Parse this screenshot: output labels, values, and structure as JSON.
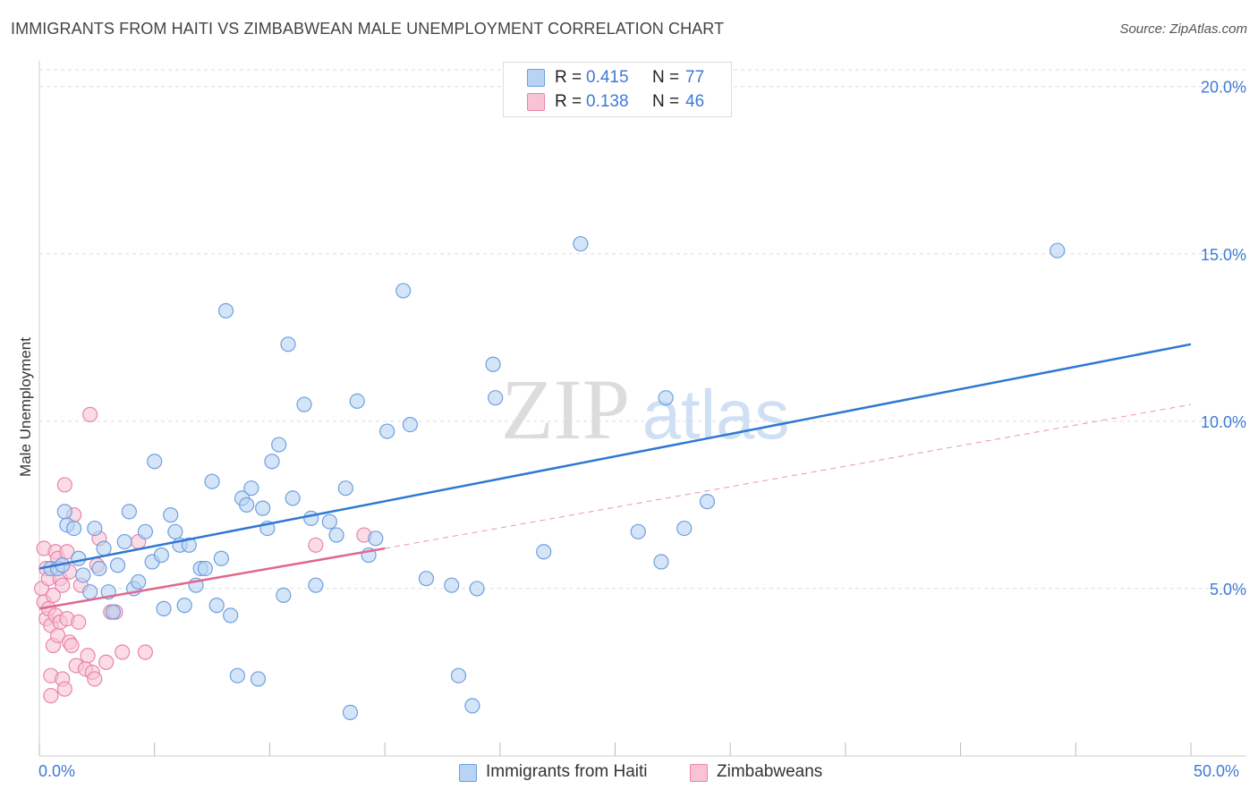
{
  "title": "IMMIGRANTS FROM HAITI VS ZIMBABWEAN MALE UNEMPLOYMENT CORRELATION CHART",
  "source": "Source: ZipAtlas.com",
  "watermark": {
    "zip": "ZIP",
    "atlas": "atlas"
  },
  "colors": {
    "blue_fill": "#b8d3f4",
    "blue_stroke": "#6f9fe0",
    "blue_line": "#2f78d2",
    "pink_fill": "#f8c3d5",
    "pink_stroke": "#e886a8",
    "pink_line": "#e0688f",
    "tick_text": "#3d7ad6",
    "grid": "#dddddd"
  },
  "legend": {
    "rows": [
      {
        "r_label": "R =",
        "r_value": "0.415",
        "n_label": "N =",
        "n_value": "77"
      },
      {
        "r_label": "R =",
        "r_value": "0.138",
        "n_label": "N =",
        "n_value": "46"
      }
    ]
  },
  "bottom_legend": [
    {
      "label": "Immigrants from Haiti"
    },
    {
      "label": "Zimbabweans"
    }
  ],
  "chart_data": {
    "type": "scatter",
    "title": "IMMIGRANTS FROM HAITI VS ZIMBABWEAN MALE UNEMPLOYMENT CORRELATION CHART",
    "xlabel": "",
    "ylabel": "Male Unemployment",
    "xlim": [
      0,
      50
    ],
    "ylim": [
      0,
      20.5
    ],
    "x_tick_labels": [
      "0.0%",
      "50.0%"
    ],
    "y_ticks": [
      5,
      10,
      15,
      20
    ],
    "y_tick_labels": [
      "5.0%",
      "10.0%",
      "15.0%",
      "20.0%"
    ],
    "x_minor_ticks": [
      0,
      5,
      10,
      15,
      20,
      25,
      30,
      35,
      40,
      45,
      50
    ],
    "grid": true,
    "legend_position": "top-center",
    "series": [
      {
        "name": "Immigrants from Haiti",
        "color": "#b8d3f4",
        "trend": {
          "x": [
            0,
            50
          ],
          "y": [
            5.6,
            12.3
          ]
        },
        "points": [
          [
            0.5,
            5.6
          ],
          [
            0.8,
            5.6
          ],
          [
            1.0,
            5.7
          ],
          [
            1.1,
            7.3
          ],
          [
            1.2,
            6.9
          ],
          [
            1.5,
            6.8
          ],
          [
            1.7,
            5.9
          ],
          [
            1.9,
            5.4
          ],
          [
            2.2,
            4.9
          ],
          [
            2.4,
            6.8
          ],
          [
            2.6,
            5.6
          ],
          [
            2.8,
            6.2
          ],
          [
            3.0,
            4.9
          ],
          [
            3.2,
            4.3
          ],
          [
            3.4,
            5.7
          ],
          [
            3.7,
            6.4
          ],
          [
            3.9,
            7.3
          ],
          [
            4.1,
            5.0
          ],
          [
            4.3,
            5.2
          ],
          [
            4.6,
            6.7
          ],
          [
            4.9,
            5.8
          ],
          [
            5.0,
            8.8
          ],
          [
            5.3,
            6.0
          ],
          [
            5.4,
            4.4
          ],
          [
            5.7,
            7.2
          ],
          [
            5.9,
            6.7
          ],
          [
            6.1,
            6.3
          ],
          [
            6.3,
            4.5
          ],
          [
            6.5,
            6.3
          ],
          [
            6.8,
            5.1
          ],
          [
            7.0,
            5.6
          ],
          [
            7.2,
            5.6
          ],
          [
            7.5,
            8.2
          ],
          [
            7.7,
            4.5
          ],
          [
            7.9,
            5.9
          ],
          [
            8.1,
            13.3
          ],
          [
            8.3,
            4.2
          ],
          [
            8.6,
            2.4
          ],
          [
            8.8,
            7.7
          ],
          [
            9.0,
            7.5
          ],
          [
            9.2,
            8.0
          ],
          [
            9.5,
            2.3
          ],
          [
            9.7,
            7.4
          ],
          [
            9.9,
            6.8
          ],
          [
            10.1,
            8.8
          ],
          [
            10.4,
            9.3
          ],
          [
            10.6,
            4.8
          ],
          [
            10.8,
            12.3
          ],
          [
            11.0,
            7.7
          ],
          [
            11.5,
            10.5
          ],
          [
            11.8,
            7.1
          ],
          [
            12.0,
            5.1
          ],
          [
            12.6,
            7.0
          ],
          [
            12.9,
            6.6
          ],
          [
            13.3,
            8.0
          ],
          [
            13.5,
            1.3
          ],
          [
            13.8,
            10.6
          ],
          [
            14.3,
            6.0
          ],
          [
            14.6,
            6.5
          ],
          [
            15.1,
            9.7
          ],
          [
            15.8,
            13.9
          ],
          [
            16.1,
            9.9
          ],
          [
            16.8,
            5.3
          ],
          [
            17.9,
            5.1
          ],
          [
            18.2,
            2.4
          ],
          [
            18.8,
            1.5
          ],
          [
            19.0,
            5.0
          ],
          [
            19.7,
            11.7
          ],
          [
            19.8,
            10.7
          ],
          [
            21.9,
            6.1
          ],
          [
            23.5,
            15.3
          ],
          [
            26.0,
            6.7
          ],
          [
            27.0,
            5.8
          ],
          [
            27.2,
            10.7
          ],
          [
            28.0,
            6.8
          ],
          [
            29.0,
            7.6
          ],
          [
            44.2,
            15.1
          ]
        ]
      },
      {
        "name": "Zimbabweans",
        "color": "#f8c3d5",
        "trend": {
          "x": [
            0,
            15
          ],
          "y": [
            4.4,
            6.2
          ]
        },
        "trend_extension": {
          "x": [
            15,
            50
          ],
          "y": [
            6.2,
            10.5
          ]
        },
        "points": [
          [
            0.1,
            5.0
          ],
          [
            0.2,
            6.2
          ],
          [
            0.2,
            4.6
          ],
          [
            0.3,
            4.1
          ],
          [
            0.3,
            5.6
          ],
          [
            0.4,
            4.4
          ],
          [
            0.4,
            5.3
          ],
          [
            0.5,
            3.9
          ],
          [
            0.5,
            2.4
          ],
          [
            0.5,
            1.8
          ],
          [
            0.6,
            4.8
          ],
          [
            0.6,
            3.3
          ],
          [
            0.7,
            6.1
          ],
          [
            0.7,
            4.2
          ],
          [
            0.8,
            5.9
          ],
          [
            0.8,
            3.6
          ],
          [
            0.9,
            5.3
          ],
          [
            0.9,
            4.0
          ],
          [
            1.0,
            2.3
          ],
          [
            1.0,
            5.1
          ],
          [
            1.1,
            2.0
          ],
          [
            1.1,
            8.1
          ],
          [
            1.2,
            6.1
          ],
          [
            1.2,
            4.1
          ],
          [
            1.3,
            3.4
          ],
          [
            1.3,
            5.5
          ],
          [
            1.4,
            3.3
          ],
          [
            1.5,
            7.2
          ],
          [
            1.6,
            2.7
          ],
          [
            1.7,
            4.0
          ],
          [
            1.8,
            5.1
          ],
          [
            2.0,
            2.6
          ],
          [
            2.1,
            3.0
          ],
          [
            2.2,
            10.2
          ],
          [
            2.3,
            2.5
          ],
          [
            2.4,
            2.3
          ],
          [
            2.5,
            5.7
          ],
          [
            2.6,
            6.5
          ],
          [
            2.9,
            2.8
          ],
          [
            3.1,
            4.3
          ],
          [
            3.3,
            4.3
          ],
          [
            3.6,
            3.1
          ],
          [
            4.3,
            6.4
          ],
          [
            4.6,
            3.1
          ],
          [
            12.0,
            6.3
          ],
          [
            14.1,
            6.6
          ]
        ]
      }
    ]
  }
}
